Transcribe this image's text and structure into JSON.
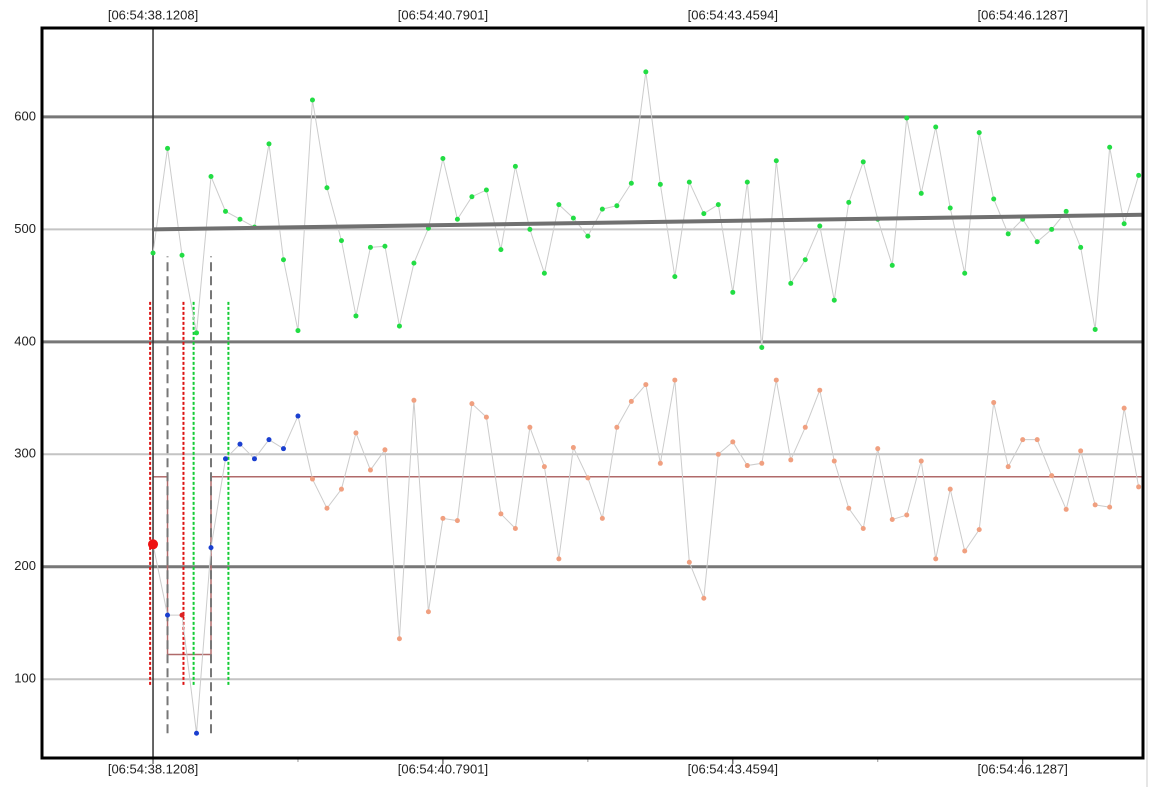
{
  "chart_data": {
    "type": "line",
    "x": [
      0,
      1,
      2,
      3,
      4,
      5,
      6,
      7,
      8,
      9,
      10,
      11,
      12,
      13,
      14,
      15,
      16,
      17,
      18,
      19,
      20,
      21,
      22,
      23,
      24,
      25,
      26,
      27,
      28,
      29,
      30,
      31,
      32,
      33,
      34,
      35,
      36,
      37,
      38,
      39,
      40,
      41,
      42,
      43,
      44,
      45,
      46,
      47,
      48,
      49,
      50,
      51,
      52,
      53,
      54,
      55,
      56,
      57,
      58,
      59,
      60,
      61,
      62,
      63,
      64,
      65,
      66,
      67,
      68
    ],
    "series": [
      {
        "color": "#22dd44",
        "line_color": "#cccccc",
        "values": [
          479,
          572,
          477,
          408,
          547,
          516,
          509,
          502,
          576,
          473,
          410,
          615,
          537,
          490,
          423,
          484,
          485,
          414,
          470,
          501,
          563,
          509,
          529,
          535,
          482,
          556,
          500,
          461,
          522,
          510,
          494,
          518,
          521,
          541,
          640,
          540,
          458,
          542,
          514,
          522,
          444,
          542,
          395,
          561,
          452,
          473,
          503,
          437,
          524,
          560,
          509,
          468,
          599,
          532,
          591,
          519,
          461,
          586,
          527,
          496,
          509,
          489,
          500,
          516,
          484,
          411,
          573,
          505,
          548
        ]
      },
      {
        "line_color": "#cccccc",
        "marker_colors": [
          "#ee1111",
          "#1a3fd0",
          "#dd2222",
          "#1a3fd0",
          "#1a3fd0",
          "#1a3fd0",
          "#1a3fd0",
          "#1a3fd0",
          "#1a3fd0",
          "#1a3fd0",
          "#1a3fd0",
          "#f0a080",
          "#f0a080",
          "#f0a080",
          "#f0a080",
          "#f0a080",
          "#f0a080",
          "#f0a080",
          "#f0a080",
          "#f0a080",
          "#f0a080",
          "#f0a080",
          "#f0a080",
          "#f0a080",
          "#f0a080",
          "#f0a080",
          "#f0a080",
          "#f0a080",
          "#f0a080",
          "#f0a080",
          "#f0a080",
          "#f0a080",
          "#f0a080",
          "#f0a080",
          "#f0a080",
          "#f0a080",
          "#f0a080",
          "#f0a080",
          "#f0a080",
          "#f0a080",
          "#f0a080",
          "#f0a080",
          "#f0a080",
          "#f0a080",
          "#f0a080",
          "#f0a080",
          "#f0a080",
          "#f0a080",
          "#f0a080",
          "#f0a080",
          "#f0a080",
          "#f0a080",
          "#f0a080",
          "#f0a080",
          "#f0a080",
          "#f0a080",
          "#f0a080",
          "#f0a080",
          "#f0a080",
          "#f0a080",
          "#f0a080",
          "#f0a080",
          "#f0a080",
          "#f0a080",
          "#f0a080",
          "#f0a080",
          "#f0a080",
          "#f0a080",
          "#f0a080"
        ],
        "values": [
          220,
          157,
          157,
          52,
          217,
          296,
          309,
          296,
          313,
          305,
          334,
          278,
          252,
          269,
          319,
          286,
          304,
          136,
          348,
          160,
          243,
          241,
          345,
          333,
          247,
          234,
          324,
          289,
          207,
          306,
          279,
          243,
          324,
          347,
          362,
          292,
          366,
          204,
          172,
          300,
          311,
          290,
          292,
          366,
          295,
          324,
          357,
          294,
          252,
          234,
          305,
          242,
          246,
          294,
          207,
          269,
          214,
          233,
          346,
          289,
          313,
          313,
          281,
          251,
          303,
          255,
          253,
          341,
          271
        ]
      }
    ],
    "trend": {
      "x": [
        0,
        68.3
      ],
      "y": [
        500,
        513
      ],
      "color": "#707070"
    },
    "steps": {
      "color": "#b06a6a",
      "segments": [
        {
          "x": [
            0,
            1
          ],
          "y": 280
        },
        {
          "x": [
            1,
            4
          ],
          "y": 122
        },
        {
          "x": [
            4,
            68.3
          ],
          "y": 280
        }
      ]
    },
    "markers": [
      {
        "x": -0.2,
        "y": [
          95,
          436
        ],
        "color": "#dd1111",
        "style": "dotted"
      },
      {
        "x": 1,
        "y": [
          52,
          476
        ],
        "color": "#777777",
        "style": "dashed"
      },
      {
        "x": 2.1,
        "y": [
          95,
          436
        ],
        "color": "#dd1111",
        "style": "dotted"
      },
      {
        "x": 2.8,
        "y": [
          95,
          436
        ],
        "color": "#11cc33",
        "style": "dotted"
      },
      {
        "x": 4,
        "y": [
          52,
          476
        ],
        "color": "#777777",
        "style": "dashed"
      },
      {
        "x": 5.2,
        "y": [
          95,
          436
        ],
        "color": "#11cc33",
        "style": "dotted"
      }
    ],
    "cursor_x": 0,
    "xlim": [
      -7.66,
      68.3
    ],
    "ylim": [
      30,
      679
    ],
    "xticks": [
      {
        "value": 0,
        "label": "[06:54:38.1208]"
      },
      {
        "value": 20,
        "label": "[06:54:40.7901]"
      },
      {
        "value": 40,
        "label": "[06:54:43.4594]"
      },
      {
        "value": 60,
        "label": "[06:54:46.1287]"
      }
    ],
    "minor_xticks": [
      10,
      30,
      50
    ],
    "yticks": [
      100,
      200,
      300,
      400,
      500,
      600
    ],
    "major_grid": [
      200,
      400,
      600
    ]
  }
}
